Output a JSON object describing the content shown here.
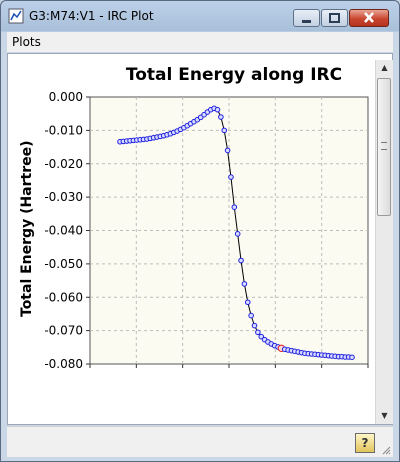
{
  "window": {
    "title": "G3:M74:V1 - IRC Plot",
    "controls": [
      "minimize",
      "maximize",
      "close"
    ]
  },
  "menu": {
    "items": [
      "Plots"
    ]
  },
  "status": {
    "help_label": "?"
  },
  "colors": {
    "series": "#2020e0",
    "marker_fill": "#d8dcff",
    "line": "#000000",
    "highlight": "#e02020",
    "plot_bg": "#fbfbf2"
  },
  "chart_data": {
    "type": "scatter",
    "title": "Total Energy along IRC",
    "ylabel": "Total Energy (Hartree)",
    "xlabel": "",
    "ylim": [
      -0.08,
      0.0
    ],
    "yticks": [
      "0.000",
      "-0.010",
      "-0.020",
      "-0.030",
      "-0.040",
      "-0.050",
      "-0.060",
      "-0.070",
      "-0.080"
    ],
    "grid": true,
    "series": [
      {
        "values": [
          -0.0134,
          -0.0133,
          -0.0132,
          -0.0131,
          -0.013,
          -0.0129,
          -0.0128,
          -0.0127,
          -0.0126,
          -0.0124,
          -0.0122,
          -0.012,
          -0.0118,
          -0.0116,
          -0.0113,
          -0.011,
          -0.0106,
          -0.0102,
          -0.0097,
          -0.0092,
          -0.0086,
          -0.008,
          -0.0074,
          -0.0068,
          -0.0061,
          -0.0053,
          -0.0045,
          -0.0038,
          -0.0034,
          -0.0038,
          -0.006,
          -0.01,
          -0.016,
          -0.024,
          -0.033,
          -0.041,
          -0.049,
          -0.056,
          -0.0615,
          -0.0655,
          -0.0685,
          -0.0705,
          -0.0718,
          -0.0727,
          -0.0734,
          -0.074,
          -0.0745,
          -0.0749,
          -0.0753,
          -0.0756,
          -0.0758,
          -0.076,
          -0.0762,
          -0.0764,
          -0.0766,
          -0.0768,
          -0.0769,
          -0.077,
          -0.0771,
          -0.0772,
          -0.0773,
          -0.0774,
          -0.0775,
          -0.0776,
          -0.0777,
          -0.0778,
          -0.0778,
          -0.0779,
          -0.0779,
          -0.078
        ],
        "highlight_index": 48
      }
    ]
  }
}
